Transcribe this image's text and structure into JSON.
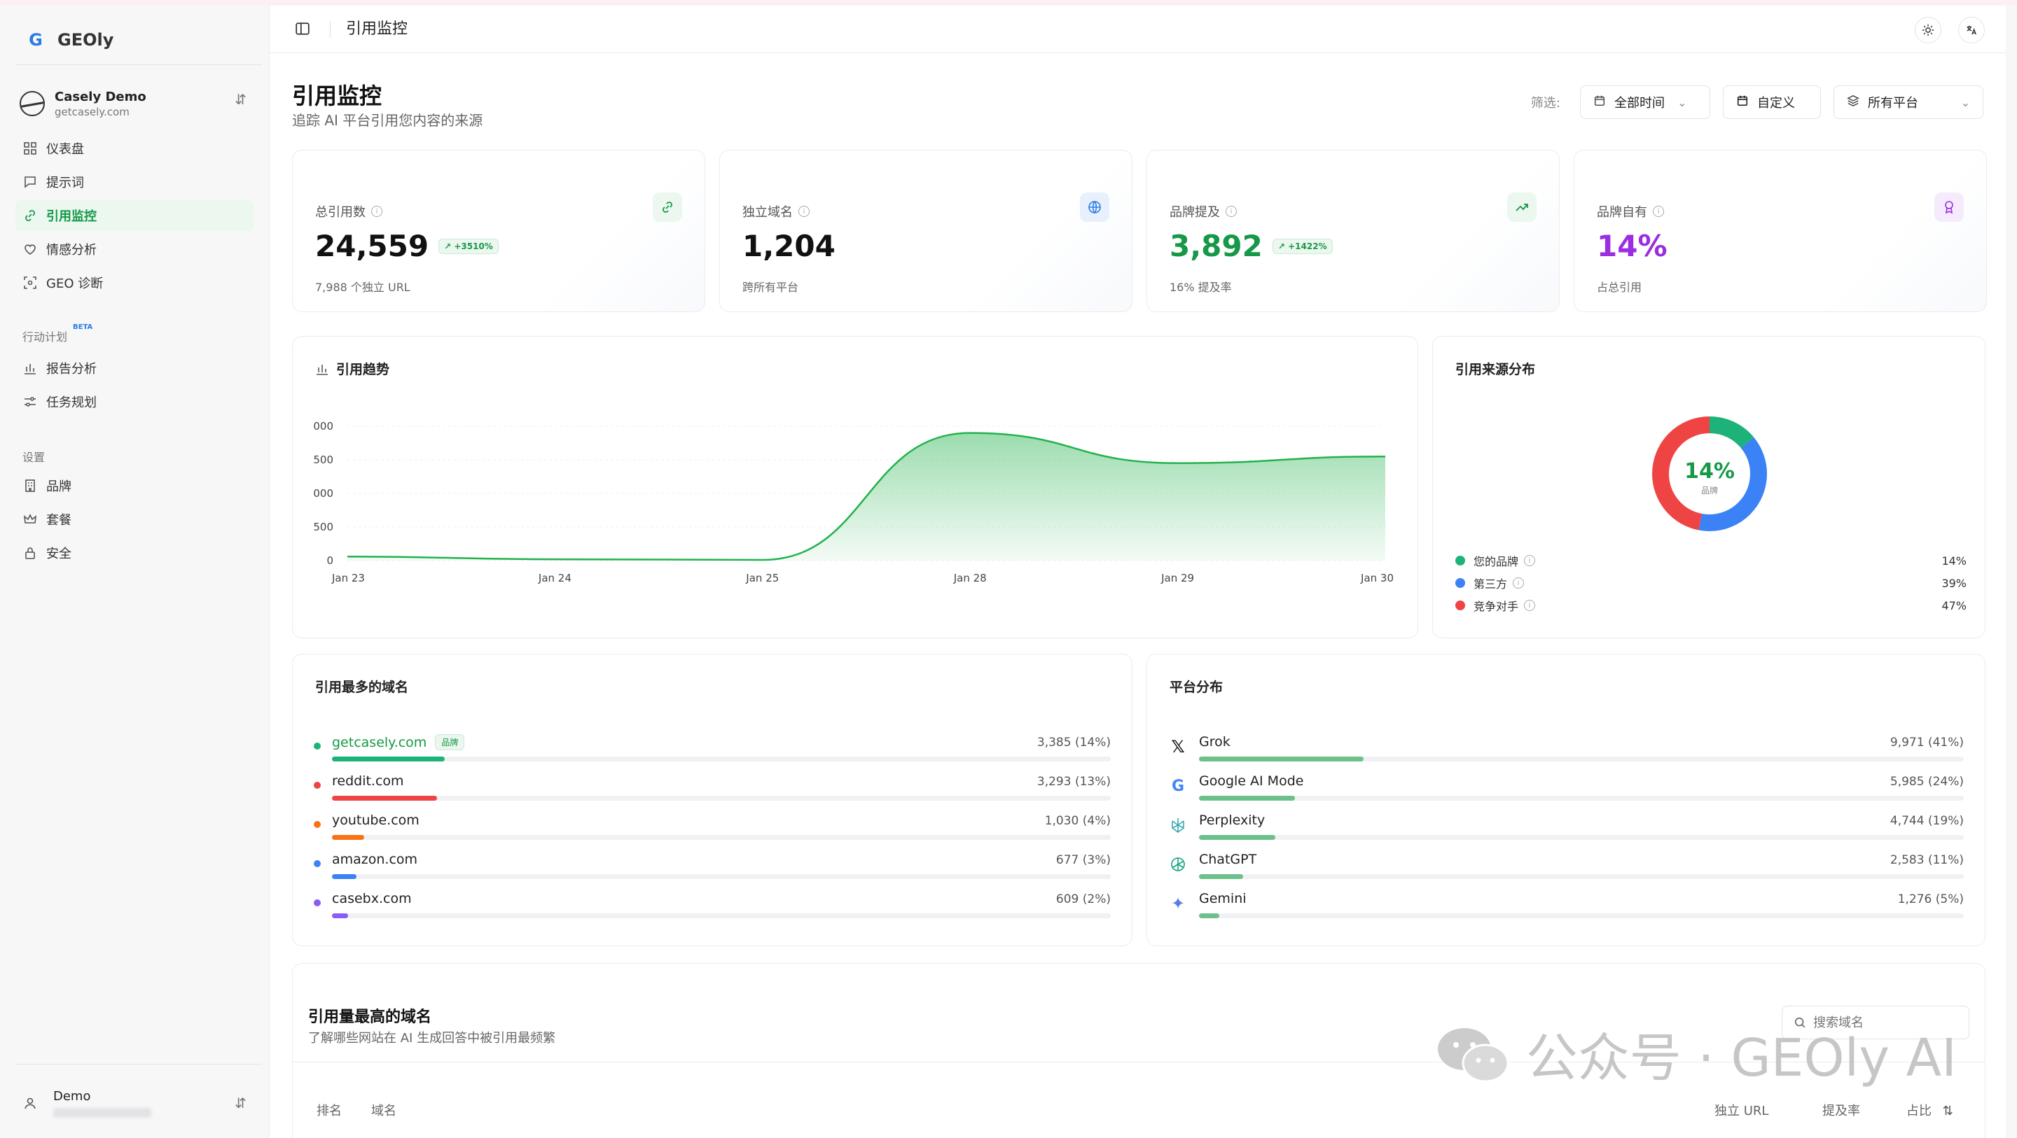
{
  "app": {
    "name": "GEOly",
    "logo_letter": "G"
  },
  "workspace": {
    "name": "Casely Demo",
    "domain": "getcasely.com"
  },
  "nav": {
    "main": [
      {
        "label": "仪表盘",
        "icon": "grid-icon"
      },
      {
        "label": "提示词",
        "icon": "message-icon"
      },
      {
        "label": "引用监控",
        "icon": "link-icon",
        "active": true
      },
      {
        "label": "情感分析",
        "icon": "heart-icon"
      },
      {
        "label": "GEO 诊断",
        "icon": "scan-icon"
      }
    ],
    "action_section": {
      "title": "行动计划",
      "badge": "BETA"
    },
    "action": [
      {
        "label": "报告分析",
        "icon": "bar-chart-icon"
      },
      {
        "label": "任务规划",
        "icon": "sliders-icon"
      }
    ],
    "settings_section": {
      "title": "设置"
    },
    "settings": [
      {
        "label": "品牌",
        "icon": "building-icon"
      },
      {
        "label": "套餐",
        "icon": "crown-icon"
      },
      {
        "label": "安全",
        "icon": "lock-icon"
      }
    ]
  },
  "user": {
    "name": "Demo"
  },
  "topbar": {
    "title": "引用监控"
  },
  "header": {
    "title": "引用监控",
    "subtitle": "追踪 AI 平台引用您内容的来源",
    "filter_label": "筛选:",
    "time_filter": "全部时间",
    "custom_filter": "自定义",
    "platform_filter": "所有平台"
  },
  "stats": [
    {
      "label": "总引用数",
      "value": "24,559",
      "delta": "+3510%",
      "sub": "7,988 个独立 URL",
      "color": "#111111",
      "icon": "link-icon",
      "icon_bg": "#ebf7ef",
      "icon_color": "#159947"
    },
    {
      "label": "独立域名",
      "value": "1,204",
      "delta": "",
      "sub": "跨所有平台",
      "color": "#111111",
      "icon": "globe-icon",
      "icon_bg": "#e8f0fd",
      "icon_color": "#2a7be4"
    },
    {
      "label": "品牌提及",
      "value": "3,892",
      "delta": "+1422%",
      "sub": "16% 提及率",
      "color": "#159947",
      "icon": "trend-up-icon",
      "icon_bg": "#ebf7ef",
      "icon_color": "#159947"
    },
    {
      "label": "品牌自有",
      "value": "14%",
      "delta": "",
      "sub": "占总引用",
      "color": "#9b2ee0",
      "icon": "award-icon",
      "icon_bg": "#f5ebfd",
      "icon_color": "#9b2ee0"
    }
  ],
  "trend": {
    "title": "引用趋势",
    "y_ticks": [
      "000",
      "500",
      "000",
      "500",
      "0"
    ],
    "x_ticks": [
      "Jan 23",
      "Jan 24",
      "Jan 25",
      "Jan 28",
      "Jan 29",
      "Jan 30"
    ]
  },
  "chart_data": {
    "type": "area",
    "title": "引用趋势",
    "x": [
      "Jan 23",
      "Jan 24",
      "Jan 25",
      "Jan 28",
      "Jan 29",
      "Jan 30"
    ],
    "series": [
      {
        "values": [
          60,
          20,
          10,
          1900,
          1450,
          1550
        ]
      }
    ],
    "ylim": [
      0,
      2000
    ],
    "grid": true,
    "color": "#22b24c"
  },
  "distribution": {
    "title": "引用来源分布",
    "center_value": "14%",
    "center_label": "品牌",
    "items": [
      {
        "label": "您的品牌",
        "value": "14%",
        "pct": 14,
        "color": "#1db378"
      },
      {
        "label": "第三方",
        "value": "39%",
        "pct": 39,
        "color": "#3b82f6"
      },
      {
        "label": "竞争对手",
        "value": "47%",
        "pct": 47,
        "color": "#ef4444"
      }
    ]
  },
  "top_domains": {
    "title": "引用最多的域名",
    "brand_tag": "品牌",
    "items": [
      {
        "name": "getcasely.com",
        "value": "3,385 (14%)",
        "pct": 14,
        "color": "#1db378",
        "brand": true
      },
      {
        "name": "reddit.com",
        "value": "3,293 (13%)",
        "pct": 13,
        "color": "#ef4444"
      },
      {
        "name": "youtube.com",
        "value": "1,030 (4%)",
        "pct": 4,
        "color": "#f97316"
      },
      {
        "name": "amazon.com",
        "value": "677 (3%)",
        "pct": 3,
        "color": "#3b82f6"
      },
      {
        "name": "casebx.com",
        "value": "609 (2%)",
        "pct": 2,
        "color": "#8b5cf6"
      }
    ]
  },
  "platforms": {
    "title": "平台分布",
    "items": [
      {
        "name": "Grok",
        "value": "9,971 (41%)",
        "pct": 41,
        "icon": "x-icon"
      },
      {
        "name": "Google AI Mode",
        "value": "5,985 (24%)",
        "pct": 24,
        "icon": "google-icon"
      },
      {
        "name": "Perplexity",
        "value": "4,744 (19%)",
        "pct": 19,
        "icon": "perplexity-icon"
      },
      {
        "name": "ChatGPT",
        "value": "2,583 (11%)",
        "pct": 11,
        "icon": "chatgpt-icon"
      },
      {
        "name": "Gemini",
        "value": "1,276 (5%)",
        "pct": 5,
        "icon": "gemini-icon"
      }
    ]
  },
  "table": {
    "title": "引用量最高的域名",
    "subtitle": "了解哪些网站在 AI 生成回答中被引用最频繁",
    "search_placeholder": "搜索域名",
    "columns": [
      "排名",
      "域名",
      "独立 URL",
      "提及率",
      "占比"
    ]
  },
  "watermark": {
    "text": "公众号 · GEOly AI"
  }
}
